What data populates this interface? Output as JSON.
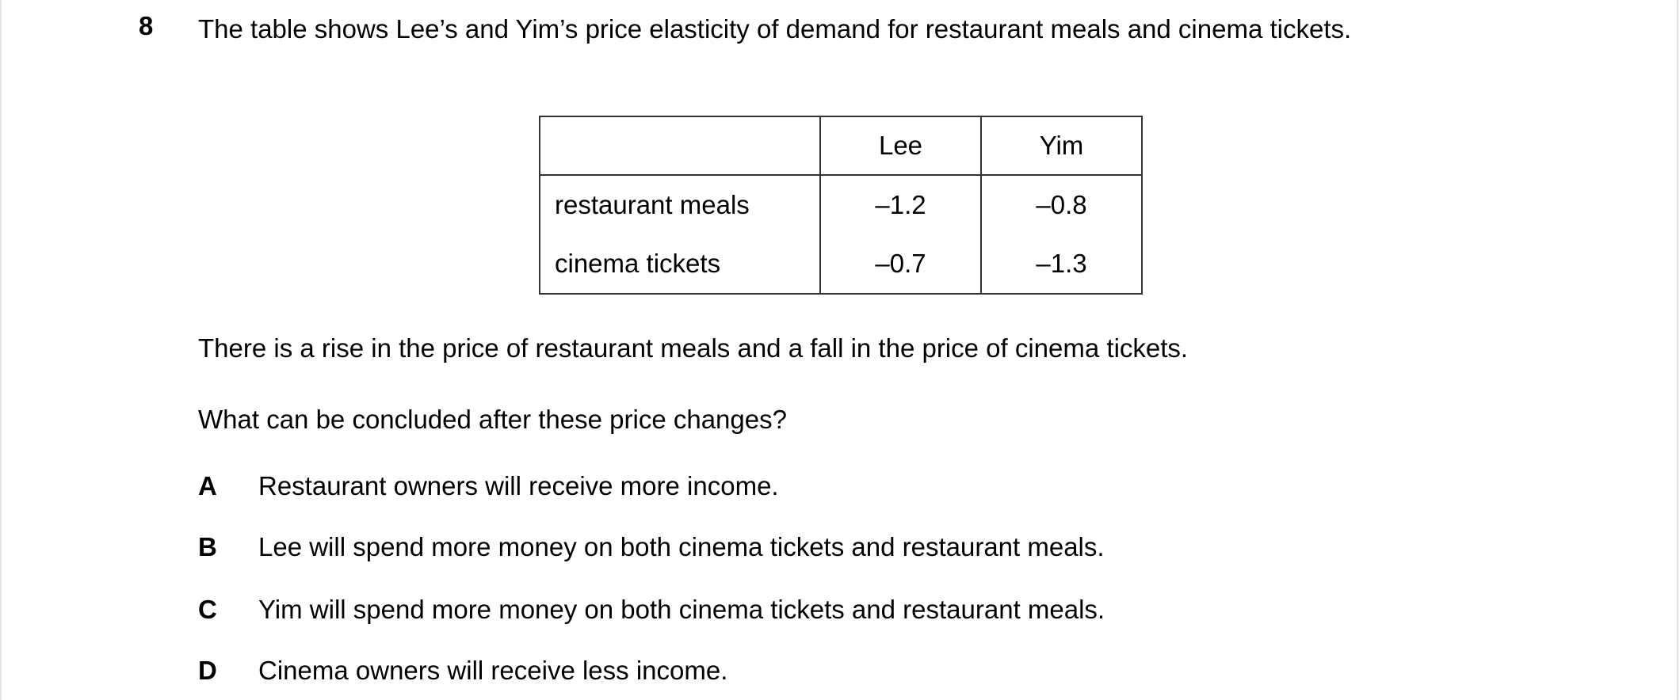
{
  "question": {
    "number": "8",
    "stem": "The table shows Lee’s and Yim’s price elasticity of demand for restaurant meals and cinema tickets.",
    "table": {
      "headers": [
        "",
        "Lee",
        "Yim"
      ],
      "rows": [
        {
          "label": "restaurant meals",
          "lee": "–1.2",
          "yim": "–0.8"
        },
        {
          "label": "cinema tickets",
          "lee": "–0.7",
          "yim": "–1.3"
        }
      ]
    },
    "context": "There is a rise in the price of restaurant meals and a fall in the price of cinema tickets.",
    "prompt": "What can be concluded after these price changes?",
    "options": [
      {
        "key": "A",
        "text": "Restaurant owners will receive more income."
      },
      {
        "key": "B",
        "text": "Lee will spend more money on both cinema tickets and restaurant meals."
      },
      {
        "key": "C",
        "text": "Yim will spend more money on both cinema tickets and restaurant meals."
      },
      {
        "key": "D",
        "text": "Cinema owners will receive less income."
      }
    ]
  }
}
